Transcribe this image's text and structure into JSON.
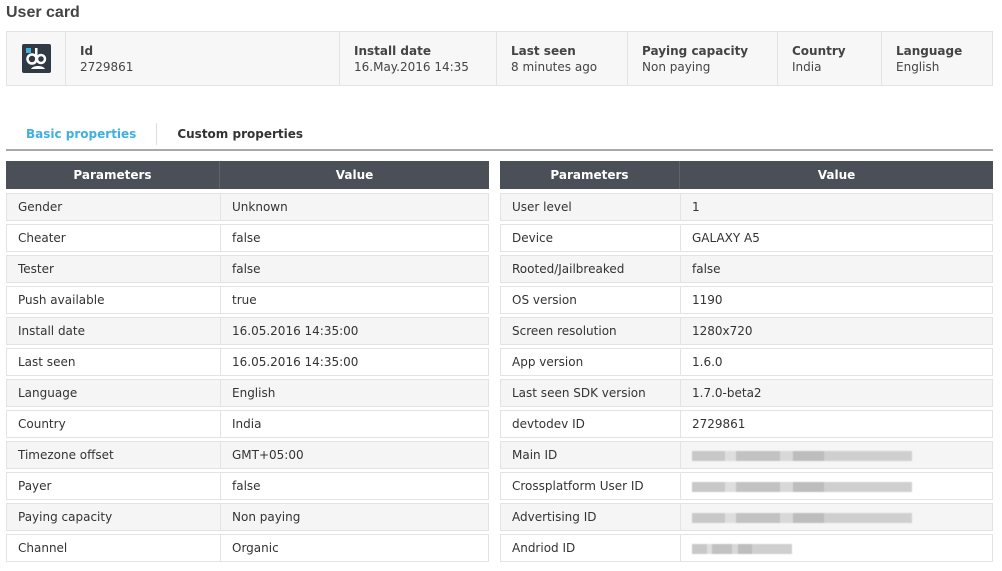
{
  "title": "User card",
  "card": {
    "fields": [
      {
        "label": "Id",
        "value": "2729861"
      },
      {
        "label": "Install date",
        "value": "16.May.2016 14:35"
      },
      {
        "label": "Last seen",
        "value": "8 minutes ago"
      },
      {
        "label": "Paying capacity",
        "value": "Non paying"
      },
      {
        "label": "Country",
        "value": "India"
      },
      {
        "label": "Language",
        "value": "English"
      }
    ]
  },
  "tabs": [
    {
      "label": "Basic properties",
      "active": true
    },
    {
      "label": "Custom properties",
      "active": false
    }
  ],
  "accent": "#3fb0e0",
  "left_table": {
    "headers": [
      "Parameters",
      "Value"
    ],
    "rows": [
      [
        "Gender",
        "Unknown"
      ],
      [
        "Cheater",
        "false"
      ],
      [
        "Tester",
        "false"
      ],
      [
        "Push available",
        "true"
      ],
      [
        "Install date",
        "16.05.2016 14:35:00"
      ],
      [
        "Last seen",
        "16.05.2016 14:35:00"
      ],
      [
        "Language",
        "English"
      ],
      [
        "Country",
        "India"
      ],
      [
        "Timezone offset",
        "GMT+05:00"
      ],
      [
        "Payer",
        "false"
      ],
      [
        "Paying capacity",
        "Non paying"
      ],
      [
        "Channel",
        "Organic"
      ]
    ]
  },
  "right_table": {
    "headers": [
      "Parameters",
      "Value"
    ],
    "rows": [
      [
        "User level",
        "1"
      ],
      [
        "Device",
        "GALAXY A5"
      ],
      [
        "Rooted/Jailbreaked",
        "false"
      ],
      [
        "OS version",
        "1190"
      ],
      [
        "Screen resolution",
        "1280x720"
      ],
      [
        "App version",
        "1.6.0"
      ],
      [
        "Last seen SDK version",
        "1.7.0-beta2"
      ],
      [
        "devtodev ID",
        "2729861"
      ],
      [
        "Main ID",
        ""
      ],
      [
        "Crossplatform User ID",
        ""
      ],
      [
        "Advertising ID",
        ""
      ],
      [
        "Andriod ID",
        ""
      ]
    ]
  }
}
